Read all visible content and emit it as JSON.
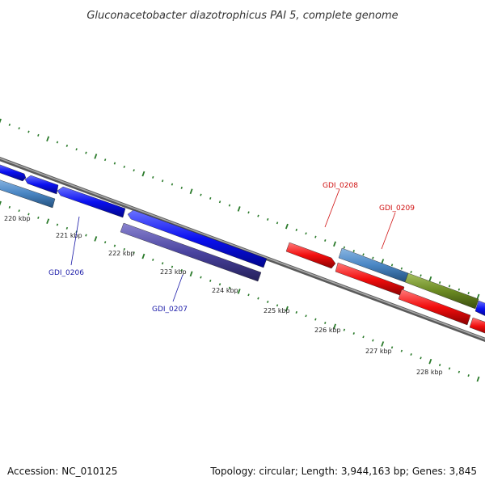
{
  "title": "Gluconacetobacter diazotrophicus PAI 5, complete genome",
  "footer": {
    "accession": "Accession: NC_010125",
    "summary": "Topology: circular; Length: 3,944,163 bp; Genes: 3,845"
  },
  "colors": {
    "backbone": "#888888",
    "tick": "#2a7a2a",
    "forward_cds": "#0a10f0",
    "reverse_cds": "#f20d0d",
    "rna_lightblue": "#4a86c4",
    "purple_feature": "#4a44a0",
    "olive_feature": "#6b8a23",
    "label_blue": "#1a1aa8",
    "label_red": "#d01010"
  },
  "kbp_labels": [
    "220 kbp",
    "221 kbp",
    "222 kbp",
    "223 kbp",
    "224 kbp",
    "225 kbp",
    "226 kbp",
    "227 kbp",
    "228 kbp"
  ],
  "gene_labels": [
    {
      "name": "GDI_0206",
      "strand": "forward"
    },
    {
      "name": "GDI_0207",
      "strand": "forward"
    },
    {
      "name": "GDI_0208",
      "strand": "reverse"
    },
    {
      "name": "GDI_0209",
      "strand": "reverse"
    }
  ]
}
